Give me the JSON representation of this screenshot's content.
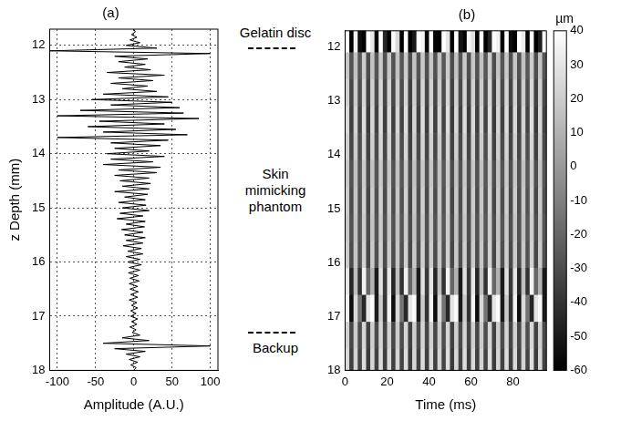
{
  "chart_data": [
    {
      "type": "line",
      "title": "(a)",
      "x_label": "Amplitude (A.U.)",
      "y_label": "z Depth (mm)",
      "color": "#000000",
      "grid": true,
      "xlim": [
        -110,
        110
      ],
      "ylim": [
        18,
        11.7
      ],
      "xticks": [
        -100,
        -50,
        0,
        50,
        100
      ],
      "yticks": [
        12,
        13,
        14,
        15,
        16,
        17,
        18
      ],
      "y": [
        11.7,
        11.75,
        11.8,
        11.85,
        11.9,
        11.95,
        12.0,
        12.05,
        12.1,
        12.15,
        12.2,
        12.25,
        12.3,
        12.35,
        12.4,
        12.45,
        12.5,
        12.55,
        12.6,
        12.65,
        12.7,
        12.75,
        12.8,
        12.85,
        12.9,
        12.95,
        13.0,
        13.05,
        13.1,
        13.15,
        13.2,
        13.25,
        13.3,
        13.35,
        13.4,
        13.45,
        13.5,
        13.55,
        13.6,
        13.65,
        13.7,
        13.75,
        13.8,
        13.85,
        13.9,
        13.95,
        14.0,
        14.05,
        14.1,
        14.15,
        14.2,
        14.25,
        14.3,
        14.35,
        14.4,
        14.45,
        14.5,
        14.55,
        14.6,
        14.65,
        14.7,
        14.75,
        14.8,
        14.85,
        14.9,
        14.95,
        15.0,
        15.05,
        15.1,
        15.15,
        15.2,
        15.25,
        15.3,
        15.35,
        15.4,
        15.45,
        15.5,
        15.55,
        15.6,
        15.65,
        15.7,
        15.75,
        15.8,
        15.85,
        15.9,
        15.95,
        16.0,
        16.05,
        16.1,
        16.15,
        16.2,
        16.25,
        16.3,
        16.35,
        16.4,
        16.45,
        16.5,
        16.55,
        16.6,
        16.65,
        16.7,
        16.75,
        16.8,
        16.85,
        16.9,
        16.95,
        17.0,
        17.05,
        17.1,
        17.15,
        17.2,
        17.25,
        17.3,
        17.35,
        17.4,
        17.45,
        17.5,
        17.55,
        17.6,
        17.65,
        17.7,
        17.75,
        17.8,
        17.85,
        17.9,
        17.95,
        18.0
      ],
      "x": [
        0,
        2,
        -3,
        4,
        -5,
        8,
        -10,
        30,
        -110,
        100,
        -25,
        18,
        -20,
        15,
        -12,
        22,
        -35,
        40,
        -20,
        25,
        -30,
        18,
        -15,
        30,
        -40,
        45,
        -55,
        50,
        -30,
        60,
        -70,
        65,
        -100,
        85,
        -45,
        40,
        -60,
        55,
        -40,
        70,
        -100,
        45,
        -30,
        35,
        -25,
        20,
        -35,
        40,
        -30,
        25,
        -40,
        35,
        -20,
        30,
        -25,
        20,
        -18,
        22,
        -15,
        20,
        -25,
        18,
        -12,
        15,
        -20,
        16,
        -15,
        20,
        -18,
        12,
        -22,
        15,
        -10,
        14,
        -16,
        12,
        -12,
        15,
        -10,
        12,
        -14,
        10,
        -8,
        12,
        -10,
        8,
        -8,
        10,
        -6,
        8,
        -7,
        6,
        -5,
        7,
        -6,
        5,
        -5,
        6,
        -4,
        5,
        -6,
        4,
        -3,
        5,
        -4,
        3,
        -4,
        5,
        -3,
        4,
        -5,
        3,
        -2,
        8,
        -15,
        20,
        -40,
        100,
        -25,
        15,
        -10,
        8,
        -6,
        5,
        -4,
        3,
        0
      ],
      "annotations": [
        {
          "text": "Gelatin disc"
        },
        {
          "text": "Skin mimicking phantom"
        },
        {
          "text": "Backup"
        }
      ],
      "boundaries": [
        12.05,
        17.3
      ]
    },
    {
      "type": "heatmap",
      "title": "(b)",
      "x_label": "Time (ms)",
      "grid": false,
      "xlim": [
        0,
        96
      ],
      "ylim": [
        18,
        11.7
      ],
      "xticks": [
        0,
        20,
        40,
        60,
        80
      ],
      "yticks": [
        12,
        13,
        14,
        15,
        16,
        17,
        18
      ],
      "x": [
        1,
        3,
        5,
        7,
        9,
        11,
        13,
        15,
        17,
        19,
        21,
        23,
        25,
        27,
        29,
        31,
        33,
        35,
        37,
        39,
        41,
        43,
        45,
        47,
        49,
        51,
        53,
        55,
        57,
        59,
        61,
        63,
        65,
        67,
        69,
        71,
        73,
        75,
        77,
        79,
        81,
        83,
        85,
        87,
        89,
        91,
        93,
        95
      ],
      "y": [
        11.85,
        12.35,
        12.85,
        13.35,
        13.85,
        14.35,
        14.85,
        15.35,
        15.85,
        16.35,
        16.85,
        17.35,
        17.85
      ],
      "z": [
        [
          40,
          -60,
          35,
          -55,
          -60,
          40,
          30,
          -60,
          40,
          -45,
          -60,
          38,
          25,
          -60,
          40,
          -60,
          -50,
          40,
          35,
          -60,
          40,
          -58,
          -60,
          40,
          30,
          -60,
          40,
          -52,
          -60,
          36,
          28,
          -60,
          40,
          -60,
          -45,
          40,
          35,
          -60,
          40,
          -55,
          -60,
          40,
          32,
          -60,
          40,
          -60,
          -48,
          38
        ],
        [
          18,
          -28,
          16,
          -26,
          20,
          -30,
          17,
          -27,
          19,
          -29,
          18,
          -28,
          16,
          -26,
          20,
          -30,
          17,
          -27,
          19,
          -29,
          18,
          -28,
          16,
          -26,
          20,
          -30,
          17,
          -27,
          19,
          -29,
          18,
          -28,
          16,
          -26,
          20,
          -30,
          17,
          -27,
          19,
          -29,
          18,
          -28,
          16,
          -26,
          20,
          -30,
          17,
          -27
        ],
        [
          22,
          -32,
          20,
          -30,
          24,
          -34,
          21,
          -31,
          23,
          -33,
          22,
          -32,
          20,
          -30,
          24,
          -34,
          21,
          -31,
          23,
          -33,
          22,
          -32,
          20,
          -30,
          24,
          -34,
          21,
          -31,
          23,
          -33,
          22,
          -32,
          20,
          -30,
          24,
          -34,
          21,
          -31,
          23,
          -33,
          22,
          -32,
          20,
          -30,
          24,
          -34,
          21,
          -31
        ],
        [
          25,
          -35,
          23,
          -33,
          27,
          -37,
          24,
          -34,
          26,
          -36,
          25,
          -35,
          23,
          -33,
          27,
          -37,
          24,
          -34,
          26,
          -36,
          25,
          -35,
          23,
          -33,
          27,
          -37,
          24,
          -34,
          26,
          -36,
          25,
          -35,
          23,
          -33,
          27,
          -37,
          24,
          -34,
          26,
          -36,
          25,
          -35,
          23,
          -33,
          27,
          -37,
          24,
          -34
        ],
        [
          22,
          -32,
          20,
          -30,
          24,
          -34,
          21,
          -31,
          23,
          -33,
          22,
          -32,
          20,
          -30,
          24,
          -34,
          21,
          -31,
          23,
          -33,
          22,
          -32,
          20,
          -30,
          24,
          -34,
          21,
          -31,
          23,
          -33,
          22,
          -32,
          20,
          -30,
          24,
          -34,
          21,
          -31,
          23,
          -33,
          22,
          -32,
          20,
          -30,
          24,
          -34,
          21,
          -31
        ],
        [
          18,
          -28,
          16,
          -26,
          20,
          -30,
          17,
          -27,
          19,
          -29,
          18,
          -28,
          16,
          -26,
          20,
          -30,
          17,
          -27,
          19,
          -29,
          18,
          -28,
          16,
          -26,
          20,
          -30,
          17,
          -27,
          19,
          -29,
          18,
          -28,
          16,
          -26,
          20,
          -30,
          17,
          -27,
          19,
          -29,
          18,
          -28,
          16,
          -26,
          20,
          -30,
          17,
          -27
        ],
        [
          20,
          -30,
          18,
          -28,
          22,
          -32,
          19,
          -29,
          21,
          -31,
          20,
          -30,
          18,
          -28,
          22,
          -32,
          19,
          -29,
          21,
          -31,
          20,
          -30,
          18,
          -28,
          22,
          -32,
          19,
          -29,
          21,
          -31,
          20,
          -30,
          18,
          -28,
          22,
          -32,
          19,
          -29,
          21,
          -31,
          20,
          -30,
          18,
          -28,
          22,
          -32,
          19,
          -29
        ],
        [
          18,
          -28,
          16,
          -26,
          20,
          -30,
          17,
          -27,
          19,
          -29,
          18,
          -28,
          16,
          -26,
          20,
          -30,
          17,
          -27,
          19,
          -29,
          18,
          -28,
          16,
          -26,
          20,
          -30,
          17,
          -27,
          19,
          -29,
          18,
          -28,
          16,
          -26,
          20,
          -30,
          17,
          -27,
          19,
          -29,
          18,
          -28,
          16,
          -26,
          20,
          -30,
          17,
          -27
        ],
        [
          20,
          -30,
          18,
          -28,
          22,
          -32,
          19,
          -29,
          21,
          -31,
          20,
          -30,
          18,
          -28,
          22,
          -32,
          19,
          -29,
          21,
          -31,
          20,
          -30,
          18,
          -28,
          22,
          -32,
          19,
          -29,
          21,
          -31,
          20,
          -30,
          18,
          -28,
          22,
          -32,
          19,
          -29,
          21,
          -31,
          20,
          -30,
          18,
          -28,
          22,
          -32,
          19,
          -29
        ],
        [
          30,
          -45,
          15,
          -40,
          35,
          -20,
          10,
          -50,
          28,
          -38,
          30,
          -45,
          15,
          -40,
          35,
          -20,
          10,
          -50,
          28,
          -38,
          30,
          -45,
          15,
          -40,
          35,
          -20,
          10,
          -50,
          28,
          -38,
          30,
          -45,
          15,
          -40,
          35,
          -20,
          10,
          -50,
          28,
          -38,
          30,
          -45,
          15,
          -40,
          35,
          -20,
          10,
          -50
        ],
        [
          35,
          -55,
          25,
          -15,
          -45,
          30,
          38,
          -50,
          20,
          -40,
          35,
          -55,
          25,
          -15,
          -45,
          30,
          38,
          -50,
          20,
          -40,
          35,
          -55,
          25,
          -15,
          -45,
          30,
          38,
          -50,
          20,
          -40,
          35,
          -55,
          25,
          -15,
          -45,
          30,
          38,
          -50,
          20,
          -40,
          35,
          -55,
          25,
          -15,
          -45,
          30,
          38,
          -50
        ],
        [
          22,
          -32,
          20,
          -30,
          24,
          -34,
          21,
          -31,
          23,
          -33,
          22,
          -32,
          20,
          -30,
          24,
          -34,
          21,
          -31,
          23,
          -33,
          22,
          -32,
          20,
          -30,
          24,
          -34,
          21,
          -31,
          23,
          -33,
          22,
          -32,
          20,
          -30,
          24,
          -34,
          21,
          -31,
          23,
          -33,
          22,
          -32,
          20,
          -30,
          24,
          -34,
          21,
          -31
        ],
        [
          25,
          -35,
          23,
          -33,
          27,
          -37,
          24,
          -34,
          26,
          -36,
          25,
          -35,
          23,
          -33,
          27,
          -37,
          24,
          -34,
          26,
          -36,
          25,
          -35,
          23,
          -33,
          27,
          -37,
          24,
          -34,
          26,
          -36,
          25,
          -35,
          23,
          -33,
          27,
          -37,
          24,
          -34,
          26,
          -36,
          25,
          -35,
          23,
          -33,
          27,
          -37,
          24,
          -34
        ]
      ],
      "colorbar": {
        "label": "µm",
        "range": [
          -60,
          40
        ],
        "ticks": [
          -60,
          -50,
          -40,
          -30,
          -20,
          -10,
          0,
          10,
          20,
          30,
          40
        ]
      }
    }
  ]
}
